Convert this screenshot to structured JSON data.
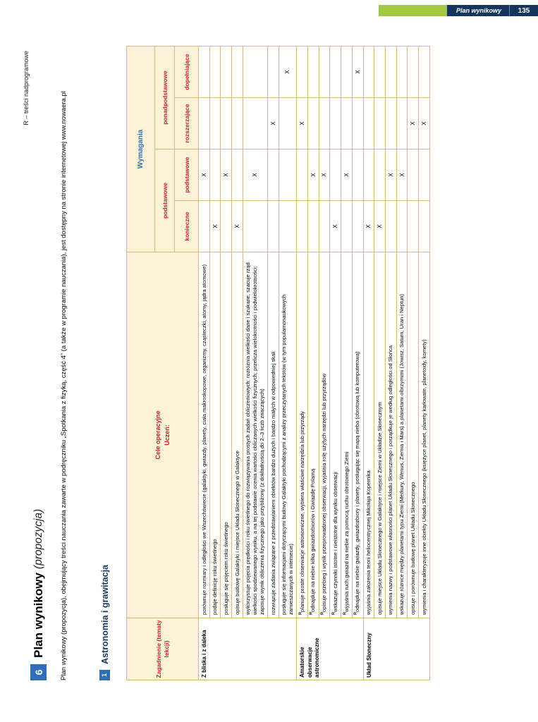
{
  "topbar": {
    "label": "Plan wynikowy",
    "page_number": "135"
  },
  "legend_note": "R – treści nadprogramowe",
  "title": {
    "number": "6",
    "main": "Plan wynikowy",
    "suffix": "(propozycja)"
  },
  "intro": "Plan wynikowy (propozycja), obejmujący treści nauczania zawarte w podręczniku „Spotkania z fizyką, część 4” (a także w programie nauczania), jest dostępny na stronie internetowej www.nowaera.pl",
  "section": {
    "number": "1",
    "title": "Astronomia i grawitacja"
  },
  "colors": {
    "accent_blue": "#2f6db6",
    "brand_green": "#a3c940",
    "header_navy": "#14365d",
    "heading_navy": "#17395f",
    "table_red": "#c0272d",
    "table_border": "#d9b87e",
    "table_header_bg": "#fcf2d7"
  },
  "table": {
    "headers": {
      "topic": "Zagadnienie (tematy lekcji)",
      "objectives": "Cele operacyjne",
      "objectives_sub": "Uczeń:",
      "requirements": "Wymagania",
      "groups": [
        "podstawowe",
        "ponadpodstawowe"
      ],
      "levels": [
        "konieczne",
        "podstawowe",
        "rozszerzające",
        "dopełniające"
      ]
    },
    "mark": "X",
    "topics": [
      {
        "label": "Z bliska i z daleka",
        "rows": [
          {
            "prefix": "",
            "text": "porównuje rozmiary i odległości we Wszechświecie (galaktyki, gwiazdy, planety, ciała makroskopowe, organizmy, cząsteczki, atomy, jądra atomowe)",
            "marks": [
              "",
              "X",
              "",
              ""
            ]
          },
          {
            "prefix": "",
            "text": "podaje definicję roku świetlnego",
            "marks": [
              "X",
              "",
              "",
              ""
            ]
          },
          {
            "prefix": "",
            "text": "posługuje się pojęciem roku świetlnego",
            "marks": [
              "",
              "X",
              "",
              ""
            ]
          },
          {
            "prefix": "",
            "text": "opisuje budowę Galaktyki i miejsce Układu Słonecznego w Galaktyce",
            "marks": [
              "X",
              "",
              "",
              ""
            ]
          },
          {
            "prefix": "",
            "text": "wykorzystuje pojęcia prędkości i roku świetlnego do rozwiązywania prostych zadań obliczeniowych: rozróżnia wielkości dane i szukane; szacuje rząd wielkości spodziewanego wyniku, a na tej podstawie ocenia wartości obliczanych wielkości fizycznych; przelicza wielokrotności i podwielokrotności; zapisuje wynik obliczenia fizycznego jako przybliżony (z dokładnością do 2–3 liczb znaczących)",
            "marks": [
              "",
              "X",
              "",
              ""
            ]
          },
          {
            "prefix": "",
            "text": "rozwiązuje zadania związane z przedstawianiem obiektów bardzo dużych i bardzo małych w odpowiedniej skali",
            "marks": [
              "",
              "",
              "X",
              ""
            ]
          },
          {
            "prefix": "",
            "text": "posługuje się informacjami dotyczącymi budowy Galaktyki pochodzącymi z analizy przeczytanych tekstów (w tym popularnonaukowych zamieszczanych w internecie)",
            "marks": [
              "",
              "",
              "",
              "X"
            ]
          }
        ]
      },
      {
        "label": "Amatorskie obserwacje astronomiczne",
        "rows": [
          {
            "prefix": "R",
            "text": "planuje proste obserwacje astronomiczne, wybiera właściwe narzędzia lub przyrządy",
            "marks": [
              "",
              "",
              "X",
              ""
            ]
          },
          {
            "prefix": "R",
            "text": "odnajduje na niebie kilka gwiazdozbiorów i Gwiazdę Polarną",
            "marks": [
              "",
              "X",
              "",
              ""
            ]
          },
          {
            "prefix": "R",
            "text": "opisuje przebieg i wynik przeprowadzonej obserwacji, wyjaśnia rolę użytych narzędzi lub przyrządów",
            "marks": [
              "",
              "X",
              "",
              ""
            ]
          },
          {
            "prefix": "R",
            "text": "wskazuje czynniki istotne i nieistotne dla wyniku obserwacji",
            "marks": [
              "X",
              "",
              "",
              ""
            ]
          },
          {
            "prefix": "R",
            "text": "wyjaśnia ruch gwiazd na niebie za pomocą ruchu obrotowego Ziemi",
            "marks": [
              "",
              "X",
              "",
              ""
            ]
          },
          {
            "prefix": "R",
            "text": "odnajduje na niebie gwiazdy, gwiazdozbiory i planety, posługując się mapą nieba (obrotową lub komputerową)",
            "marks": [
              "",
              "",
              "",
              "X"
            ]
          }
        ]
      },
      {
        "label": "Układ Słoneczny",
        "rows": [
          {
            "prefix": "",
            "text": "wyjaśnia założenia teorii heliocentrycznej Mikołaja Kopernika",
            "marks": [
              "X",
              "",
              "",
              ""
            ]
          },
          {
            "prefix": "",
            "text": "opisuje miejsce Układu Słonecznego w Galaktyce i miejsce Ziemi w Układzie Słonecznym",
            "marks": [
              "X",
              "",
              "",
              ""
            ]
          },
          {
            "prefix": "",
            "text": "wymienia nazwy i podstawowe własności planet Układu Słonecznego i porządkuje je według odległości od Słońca",
            "marks": [
              "",
              "X",
              "",
              ""
            ]
          },
          {
            "prefix": "",
            "text": "wskazuje różnice między planetami typu Ziemi (Merkury, Wenus, Ziemia i Mars) a planetami olbrzymimi (Jowisz, Saturn, Uran i Neptun)",
            "marks": [
              "",
              "X",
              "",
              ""
            ]
          },
          {
            "prefix": "",
            "text": "opisuje i porównuje budowę planet Układu Słonecznego",
            "marks": [
              "",
              "",
              "X",
              ""
            ]
          },
          {
            "prefix": "",
            "text": "wymienia i charakteryzuje inne obiekty Układu Słonecznego (księżyce planet, planety karłowate, planetoidy, komety)",
            "marks": [
              "",
              "",
              "X",
              ""
            ]
          }
        ]
      }
    ]
  }
}
